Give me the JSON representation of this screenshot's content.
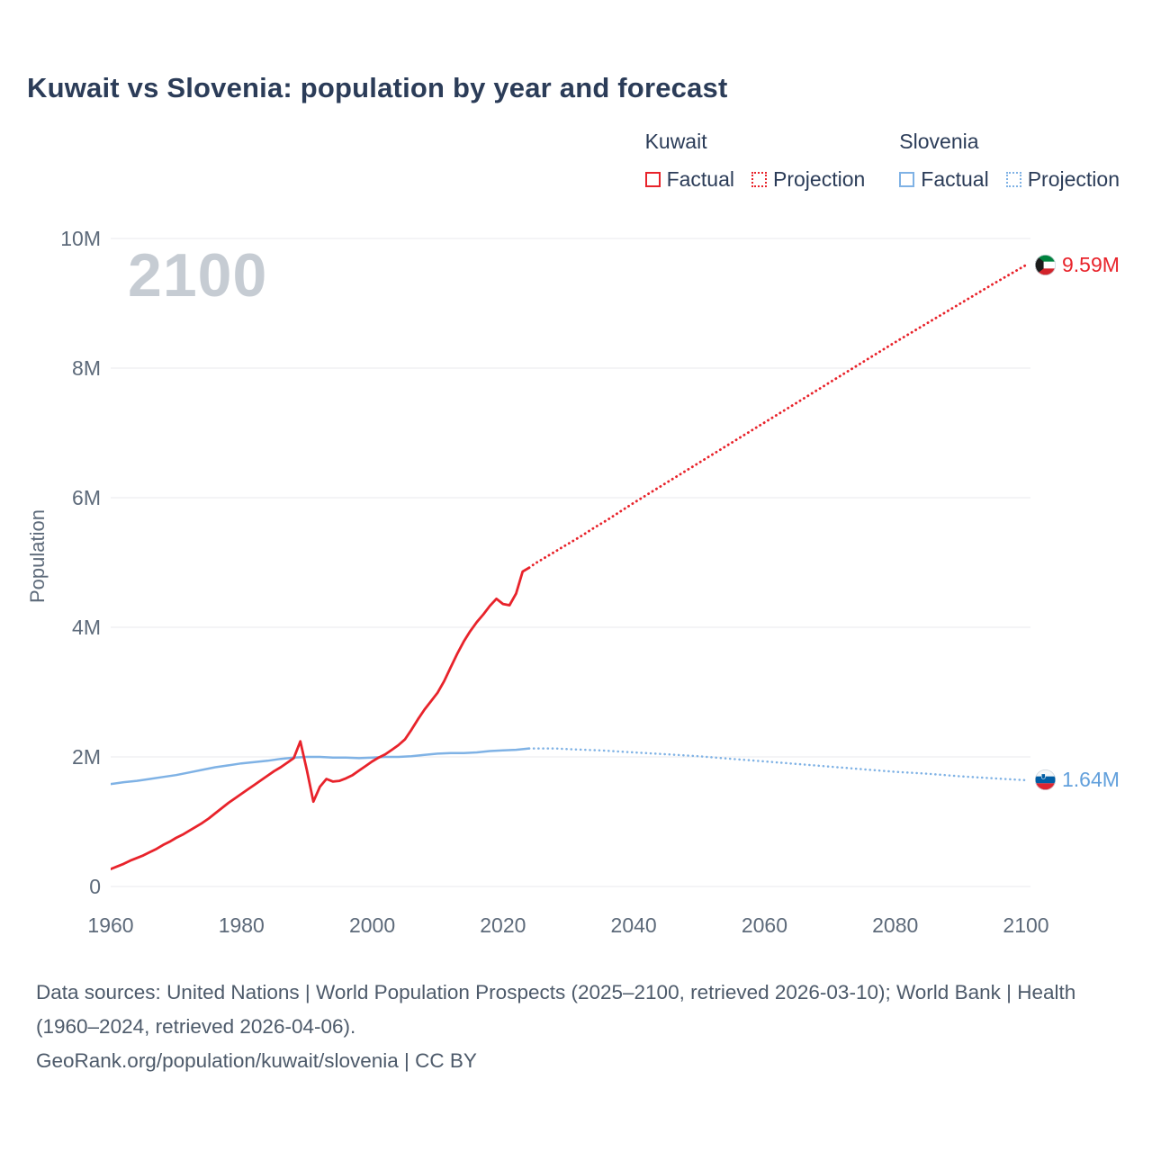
{
  "legend": {
    "groups": [
      {
        "name": "Kuwait",
        "color": "#e8232b",
        "items": [
          {
            "label": "Factual",
            "style": "solid"
          },
          {
            "label": "Projection",
            "style": "dotted"
          }
        ]
      },
      {
        "name": "Slovenia",
        "color": "#7fb2e5",
        "items": [
          {
            "label": "Factual",
            "style": "solid"
          },
          {
            "label": "Projection",
            "style": "dotted"
          }
        ]
      }
    ]
  },
  "chart_data": {
    "type": "line",
    "title": "Kuwait vs Slovenia: population by year and forecast",
    "xlabel": "",
    "ylabel": "Population",
    "x_unit": "year",
    "y_unit": "millions of people",
    "xlim": [
      1960,
      2100
    ],
    "ylim": [
      0,
      10
    ],
    "xticks": [
      1960,
      1980,
      2000,
      2020,
      2040,
      2060,
      2080,
      2100
    ],
    "yticks": [
      {
        "value": 0,
        "label": "0"
      },
      {
        "value": 2,
        "label": "2M"
      },
      {
        "value": 4,
        "label": "4M"
      },
      {
        "value": 6,
        "label": "6M"
      },
      {
        "value": 8,
        "label": "8M"
      },
      {
        "value": 10,
        "label": "10M"
      }
    ],
    "grid": "horizontal",
    "legend_position": "top-right",
    "watermark": "2100",
    "series": [
      {
        "id": "slovenia-factual",
        "name": "Slovenia Factual",
        "color": "#7fb2e5",
        "style": "solid",
        "points": [
          [
            1960,
            1.58
          ],
          [
            1962,
            1.61
          ],
          [
            1964,
            1.63
          ],
          [
            1966,
            1.66
          ],
          [
            1968,
            1.69
          ],
          [
            1970,
            1.72
          ],
          [
            1972,
            1.76
          ],
          [
            1974,
            1.8
          ],
          [
            1976,
            1.84
          ],
          [
            1978,
            1.87
          ],
          [
            1980,
            1.9
          ],
          [
            1982,
            1.92
          ],
          [
            1984,
            1.94
          ],
          [
            1986,
            1.97
          ],
          [
            1988,
            1.99
          ],
          [
            1990,
            2.0
          ],
          [
            1992,
            2.0
          ],
          [
            1994,
            1.99
          ],
          [
            1996,
            1.99
          ],
          [
            1998,
            1.98
          ],
          [
            2000,
            1.99
          ],
          [
            2002,
            2.0
          ],
          [
            2004,
            2.0
          ],
          [
            2006,
            2.01
          ],
          [
            2008,
            2.03
          ],
          [
            2010,
            2.05
          ],
          [
            2012,
            2.06
          ],
          [
            2014,
            2.06
          ],
          [
            2016,
            2.07
          ],
          [
            2018,
            2.09
          ],
          [
            2020,
            2.1
          ],
          [
            2022,
            2.11
          ],
          [
            2024,
            2.13
          ]
        ]
      },
      {
        "id": "slovenia-projection",
        "name": "Slovenia Projection",
        "color": "#7fb2e5",
        "style": "dotted",
        "points": [
          [
            2024,
            2.13
          ],
          [
            2028,
            2.13
          ],
          [
            2030,
            2.12
          ],
          [
            2035,
            2.1
          ],
          [
            2040,
            2.07
          ],
          [
            2045,
            2.04
          ],
          [
            2050,
            2.01
          ],
          [
            2055,
            1.97
          ],
          [
            2060,
            1.93
          ],
          [
            2065,
            1.89
          ],
          [
            2070,
            1.85
          ],
          [
            2075,
            1.81
          ],
          [
            2080,
            1.77
          ],
          [
            2085,
            1.74
          ],
          [
            2090,
            1.7
          ],
          [
            2095,
            1.67
          ],
          [
            2100,
            1.64
          ]
        ]
      },
      {
        "id": "kuwait-factual",
        "name": "Kuwait Factual",
        "color": "#e8232b",
        "style": "solid",
        "points": [
          [
            1960,
            0.27
          ],
          [
            1961,
            0.31
          ],
          [
            1962,
            0.35
          ],
          [
            1963,
            0.4
          ],
          [
            1964,
            0.44
          ],
          [
            1965,
            0.48
          ],
          [
            1966,
            0.53
          ],
          [
            1967,
            0.58
          ],
          [
            1968,
            0.64
          ],
          [
            1969,
            0.69
          ],
          [
            1970,
            0.75
          ],
          [
            1971,
            0.8
          ],
          [
            1972,
            0.86
          ],
          [
            1973,
            0.92
          ],
          [
            1974,
            0.98
          ],
          [
            1975,
            1.05
          ],
          [
            1976,
            1.13
          ],
          [
            1977,
            1.21
          ],
          [
            1978,
            1.29
          ],
          [
            1979,
            1.36
          ],
          [
            1980,
            1.43
          ],
          [
            1981,
            1.5
          ],
          [
            1982,
            1.57
          ],
          [
            1983,
            1.64
          ],
          [
            1984,
            1.71
          ],
          [
            1985,
            1.78
          ],
          [
            1986,
            1.84
          ],
          [
            1987,
            1.91
          ],
          [
            1988,
            1.98
          ],
          [
            1989,
            2.24
          ],
          [
            1990,
            1.8
          ],
          [
            1991,
            1.31
          ],
          [
            1992,
            1.54
          ],
          [
            1993,
            1.66
          ],
          [
            1994,
            1.62
          ],
          [
            1995,
            1.63
          ],
          [
            1996,
            1.67
          ],
          [
            1997,
            1.72
          ],
          [
            1998,
            1.79
          ],
          [
            1999,
            1.86
          ],
          [
            2000,
            1.93
          ],
          [
            2001,
            1.99
          ],
          [
            2002,
            2.04
          ],
          [
            2003,
            2.11
          ],
          [
            2004,
            2.18
          ],
          [
            2005,
            2.27
          ],
          [
            2006,
            2.42
          ],
          [
            2007,
            2.58
          ],
          [
            2008,
            2.73
          ],
          [
            2009,
            2.86
          ],
          [
            2010,
            2.99
          ],
          [
            2011,
            3.17
          ],
          [
            2012,
            3.38
          ],
          [
            2013,
            3.59
          ],
          [
            2014,
            3.78
          ],
          [
            2015,
            3.94
          ],
          [
            2016,
            4.08
          ],
          [
            2017,
            4.2
          ],
          [
            2018,
            4.33
          ],
          [
            2019,
            4.44
          ],
          [
            2020,
            4.36
          ],
          [
            2021,
            4.34
          ],
          [
            2022,
            4.52
          ],
          [
            2023,
            4.86
          ],
          [
            2024,
            4.92
          ]
        ]
      },
      {
        "id": "kuwait-projection",
        "name": "Kuwait Projection",
        "color": "#e8232b",
        "style": "dotted",
        "points": [
          [
            2024,
            4.92
          ],
          [
            2025,
            4.99
          ],
          [
            2026,
            5.05
          ],
          [
            2027,
            5.11
          ],
          [
            2028,
            5.17
          ],
          [
            2029,
            5.23
          ],
          [
            2030,
            5.29
          ],
          [
            2032,
            5.41
          ],
          [
            2034,
            5.54
          ],
          [
            2036,
            5.66
          ],
          [
            2038,
            5.79
          ],
          [
            2040,
            5.92
          ],
          [
            2045,
            6.23
          ],
          [
            2050,
            6.54
          ],
          [
            2055,
            6.85
          ],
          [
            2060,
            7.16
          ],
          [
            2065,
            7.47
          ],
          [
            2070,
            7.78
          ],
          [
            2075,
            8.09
          ],
          [
            2080,
            8.4
          ],
          [
            2085,
            8.7
          ],
          [
            2090,
            9.0
          ],
          [
            2095,
            9.3
          ],
          [
            2100,
            9.59
          ]
        ]
      }
    ],
    "end_labels": [
      {
        "label": "9.59M",
        "value": 9.59,
        "color": "#e8232b",
        "flag_icon": "kuwait-flag-icon"
      },
      {
        "label": "1.64M",
        "value": 1.64,
        "color": "#62a0dc",
        "flag_icon": "slovenia-flag-icon"
      }
    ]
  },
  "footer": {
    "sources": "Data sources: United Nations | World Population Prospects (2025–2100, retrieved 2026-03-10); World Bank | Health (1960–2024, retrieved 2026-04-06).",
    "license_line": "GeoRank.org/population/kuwait/slovenia | CC BY"
  }
}
